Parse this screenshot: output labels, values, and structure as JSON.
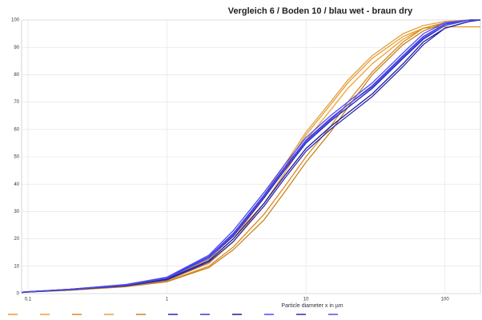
{
  "chart_data": {
    "type": "line",
    "title": "Vergleich 6 /  Boden 10 / blau wet - braun dry",
    "x_label": "Particle diameter x in µm",
    "log_x": true,
    "grid": true,
    "x": [
      0.09,
      0.1,
      0.2,
      0.5,
      1,
      2,
      3,
      5,
      7,
      10,
      15,
      20,
      30,
      50,
      70,
      100,
      150,
      180
    ],
    "xlim": [
      0.09,
      180
    ],
    "ylim": [
      0,
      100
    ],
    "xticks": [
      {
        "value": 0.1,
        "label": "0,1"
      },
      1,
      10,
      100
    ],
    "yticks": [
      0,
      10,
      20,
      30,
      40,
      50,
      60,
      70,
      80,
      90,
      100
    ],
    "series": [
      {
        "color": "#e89a2c",
        "values": [
          0.5,
          0.7,
          1.5,
          3,
          5,
          12,
          20,
          35,
          46,
          58,
          69,
          77,
          86,
          94,
          97,
          97.5,
          97.5,
          97.5
        ]
      },
      {
        "color": "#f0a030",
        "values": [
          0.5,
          0.7,
          1.4,
          2.8,
          4.8,
          11,
          19,
          33,
          44,
          56,
          67,
          75,
          84,
          93,
          97,
          99,
          100,
          100
        ]
      },
      {
        "color": "#d88a20",
        "values": [
          0.4,
          0.6,
          1.3,
          2.6,
          4.5,
          10,
          17,
          29,
          39,
          50,
          61,
          70,
          81,
          92,
          97,
          99,
          100,
          100
        ]
      },
      {
        "color": "#e0a040",
        "values": [
          0.5,
          0.7,
          1.5,
          3,
          5.2,
          12.5,
          21,
          36,
          47,
          59,
          70,
          78,
          87,
          95,
          98,
          99.5,
          100,
          100
        ]
      },
      {
        "color": "#c8821e",
        "values": [
          0.4,
          0.6,
          1.2,
          2.5,
          4.3,
          9.5,
          16,
          27,
          37,
          48,
          59,
          68,
          80,
          91,
          96,
          99,
          100,
          100
        ]
      },
      {
        "color": "#2222c8",
        "values": [
          0.5,
          0.7,
          1.5,
          3,
          5.5,
          13,
          21,
          35,
          45,
          55,
          63,
          68,
          75,
          86,
          93,
          98,
          100,
          100
        ]
      },
      {
        "color": "#3434e6",
        "values": [
          0.5,
          0.7,
          1.6,
          3.2,
          5.8,
          13.5,
          22,
          36,
          46,
          56,
          64,
          69,
          76,
          87,
          94,
          98.5,
          100,
          100
        ]
      },
      {
        "color": "#1a1a9c",
        "values": [
          0.4,
          0.6,
          1.4,
          2.9,
          5.2,
          12,
          20,
          33,
          43,
          53,
          61,
          66,
          73,
          84,
          92,
          97,
          99.5,
          100
        ]
      },
      {
        "color": "#4848ff",
        "values": [
          0.5,
          0.7,
          1.6,
          3.3,
          6,
          14,
          23,
          37,
          47,
          57,
          65,
          70,
          77,
          88,
          95,
          99,
          100,
          100
        ]
      },
      {
        "color": "#2a2ab0",
        "values": [
          0.4,
          0.6,
          1.4,
          2.8,
          5,
          11.5,
          19,
          32,
          42,
          52,
          60,
          65,
          72,
          83,
          91,
          97,
          99.5,
          100
        ]
      },
      {
        "color": "#5050d8",
        "values": [
          0.5,
          0.7,
          1.5,
          3.1,
          5.6,
          13,
          21.5,
          35.5,
          45.5,
          55.5,
          63.5,
          69,
          75.5,
          86.5,
          93.5,
          98,
          100,
          100
        ]
      }
    ]
  }
}
